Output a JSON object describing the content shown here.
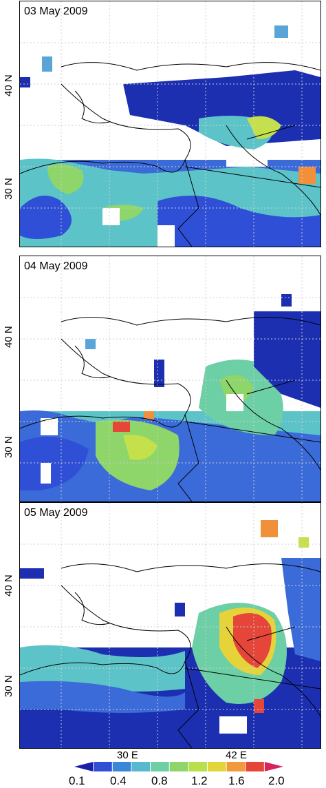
{
  "panels": [
    {
      "date": "03 May 2009",
      "lat_labels": [
        "40 N",
        "30 N"
      ]
    },
    {
      "date": "04 May 2009",
      "lat_labels": [
        "40 N",
        "30 N"
      ]
    },
    {
      "date": "05 May 2009",
      "lat_labels": [
        "40 N",
        "30 N"
      ]
    }
  ],
  "lon_labels": [
    "30 E",
    "42 E"
  ],
  "colorbar": {
    "ticks": [
      "0.1",
      "0.4",
      "0.8",
      "1.2",
      "1.6",
      "2.0"
    ],
    "colors": [
      "#1b1fa8",
      "#2f4fd6",
      "#3a86d8",
      "#56b9cf",
      "#6ccfa5",
      "#8ed56a",
      "#b8e04a",
      "#e2d53a",
      "#f09a3a",
      "#e6453a",
      "#d8245a"
    ]
  },
  "colors": {
    "dark_blue": "#1b2fb0",
    "blue": "#3b6bd8",
    "light_blue": "#5aa5d8",
    "cyan": "#5cc4c8",
    "teal": "#6ccfa5",
    "green": "#8ed56a",
    "yellow_green": "#c4e04a",
    "yellow": "#e6d33a",
    "orange": "#f0903a",
    "red": "#e6453a",
    "magenta": "#d8245a"
  }
}
